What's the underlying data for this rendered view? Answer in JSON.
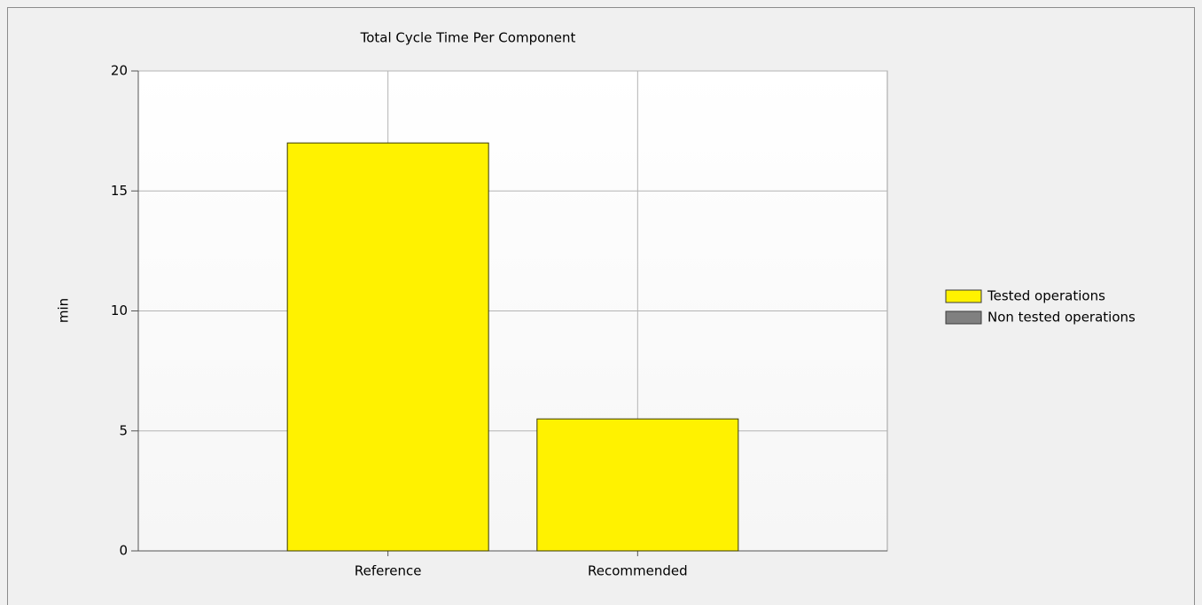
{
  "chart_data": {
    "type": "bar",
    "stacked": true,
    "title": "Total Cycle Time Per Component",
    "ylabel": "min",
    "categories": [
      "Reference",
      "Recommended"
    ],
    "series": [
      {
        "name": "Tested operations",
        "color": "#fff200",
        "values": [
          17,
          5.5
        ]
      },
      {
        "name": "Non tested operations",
        "color": "#808080",
        "values": [
          0,
          0
        ]
      }
    ],
    "ylim": [
      0,
      20
    ],
    "yticks": [
      0,
      5,
      10,
      15,
      20
    ],
    "grid": true,
    "legend": "right"
  }
}
